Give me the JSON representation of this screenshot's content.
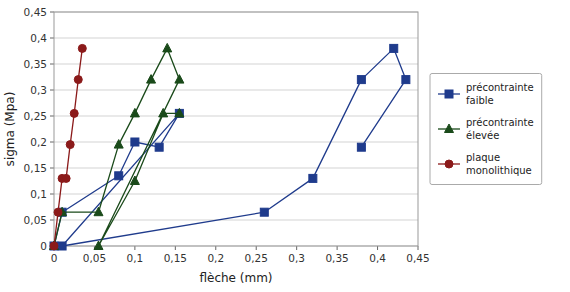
{
  "chart_data": {
    "type": "line",
    "xlabel": "flèche (mm)",
    "ylabel": "sigma (Mpa)",
    "xlim": [
      0,
      0.45
    ],
    "ylim": [
      0,
      0.45
    ],
    "xticks": [
      0,
      {
        "value": 0.05,
        "label": "0,05"
      },
      {
        "value": 0.1,
        "label": "0,1"
      },
      {
        "value": 0.15,
        "label": "0,15"
      },
      {
        "value": 0.2,
        "label": "0,2"
      },
      {
        "value": 0.25,
        "label": "0,25"
      },
      {
        "value": 0.3,
        "label": "0,3"
      },
      {
        "value": 0.35,
        "label": "0,35"
      },
      {
        "value": 0.4,
        "label": "0,4"
      },
      {
        "value": 0.45,
        "label": "0,45"
      }
    ],
    "yticks": [
      0,
      {
        "value": 0.05,
        "label": "0,05"
      },
      {
        "value": 0.1,
        "label": "0,1"
      },
      {
        "value": 0.15,
        "label": "0,15"
      },
      {
        "value": 0.2,
        "label": "0,2"
      },
      {
        "value": 0.25,
        "label": "0,25"
      },
      {
        "value": 0.3,
        "label": "0,3"
      },
      {
        "value": 0.35,
        "label": "0,35"
      },
      {
        "value": 0.4,
        "label": "0,4"
      },
      {
        "value": 0.45,
        "label": "0,45"
      }
    ],
    "grid": "y",
    "legend": "right",
    "series": [
      {
        "name": "précontrainte\nfaible",
        "color": "#1F3B8C",
        "marker": "square",
        "x": [
          0.0,
          0.01,
          0.08,
          0.1,
          0.13,
          0.155,
          0.01,
          0.26,
          0.32,
          0.38,
          0.42,
          0.435,
          0.38
        ],
        "values": [
          0.0,
          0.065,
          0.135,
          0.2,
          0.19,
          0.255,
          0.0,
          0.065,
          0.13,
          0.32,
          0.38,
          0.32,
          0.19
        ]
      },
      {
        "name": "précontrainte\nélevée",
        "color": "#1A4A1A",
        "marker": "triangle",
        "x": [
          0.0,
          0.01,
          0.055,
          0.08,
          0.1,
          0.12,
          0.14,
          0.155,
          0.055,
          0.1,
          0.135,
          0.155
        ],
        "values": [
          0.0,
          0.065,
          0.065,
          0.195,
          0.255,
          0.32,
          0.38,
          0.32,
          0.0,
          0.125,
          0.255,
          0.255
        ]
      },
      {
        "name": "plaque\nmonolithique",
        "color": "#8B1A1A",
        "marker": "circle",
        "x": [
          0.0,
          0.005,
          0.01,
          0.015,
          0.02,
          0.025,
          0.03,
          0.035
        ],
        "values": [
          0.0,
          0.065,
          0.13,
          0.13,
          0.195,
          0.255,
          0.32,
          0.38
        ]
      }
    ]
  }
}
